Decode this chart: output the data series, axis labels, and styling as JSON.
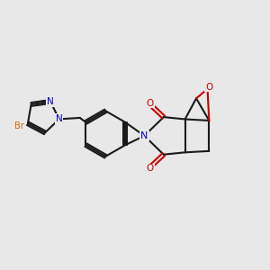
{
  "background_color": "#e8e8e8",
  "bond_color": "#1a1a1a",
  "nitrogen_color": "#0000cc",
  "oxygen_color": "#cc0000",
  "bromine_color": "#cc6600",
  "figsize": [
    3.0,
    3.0
  ],
  "dpi": 100,
  "xlim": [
    0,
    10
  ],
  "ylim": [
    0,
    10
  ],
  "lw": 1.5
}
